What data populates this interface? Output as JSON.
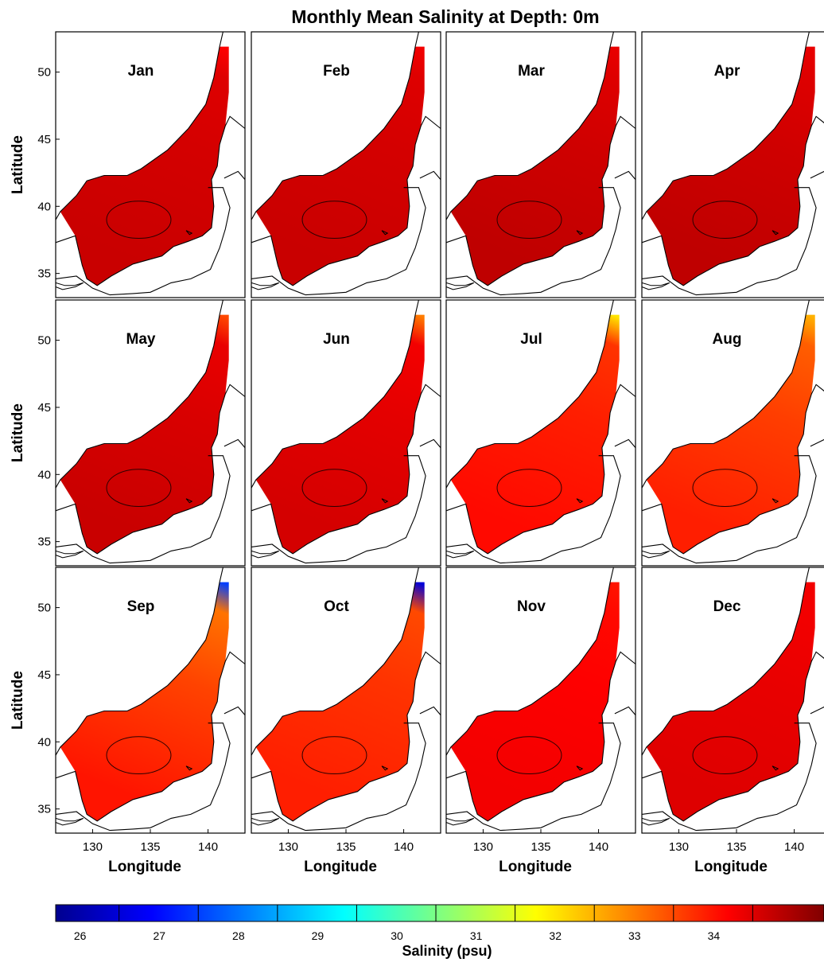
{
  "chart_data": {
    "type": "heatmap",
    "title": "Monthly Mean Salinity at Depth: 0m",
    "xlabel": "Longitude",
    "ylabel": "Latitude",
    "x_ticks": [
      130,
      135,
      140
    ],
    "y_ticks": [
      35,
      40,
      45,
      50
    ],
    "xlim": [
      126.8,
      143.2
    ],
    "ylim": [
      33.2,
      53.0
    ],
    "grid": false,
    "layout": "3 rows x 4 columns",
    "panels": [
      {
        "month": "Jan",
        "surface_salinity_psu": 34.2,
        "coastal_min_psu": 34.0,
        "north_tip_psu": 33.7,
        "contour_psu": 34.2
      },
      {
        "month": "Feb",
        "surface_salinity_psu": 34.2,
        "coastal_min_psu": 34.0,
        "north_tip_psu": 33.8,
        "contour_psu": 34.2
      },
      {
        "month": "Mar",
        "surface_salinity_psu": 34.3,
        "coastal_min_psu": 34.0,
        "north_tip_psu": 33.9,
        "contour_psu": 34.2
      },
      {
        "month": "Apr",
        "surface_salinity_psu": 34.3,
        "coastal_min_psu": 34.0,
        "north_tip_psu": 33.9,
        "contour_psu": 34.2
      },
      {
        "month": "May",
        "surface_salinity_psu": 34.2,
        "coastal_min_psu": 33.9,
        "north_tip_psu": 33.0,
        "contour_psu": 34.2
      },
      {
        "month": "Jun",
        "surface_salinity_psu": 34.1,
        "coastal_min_psu": 33.8,
        "north_tip_psu": 32.5,
        "contour_psu": 34.2
      },
      {
        "month": "Jul",
        "surface_salinity_psu": 33.6,
        "coastal_min_psu": 33.2,
        "north_tip_psu": 31.5,
        "contour_psu": 34.0
      },
      {
        "month": "Aug",
        "surface_salinity_psu": 33.4,
        "coastal_min_psu": 32.8,
        "north_tip_psu": 32.0,
        "contour_psu": 33.5
      },
      {
        "month": "Sep",
        "surface_salinity_psu": 33.5,
        "coastal_min_psu": 32.6,
        "north_tip_psu": 27.0,
        "contour_psu": 33.5
      },
      {
        "month": "Oct",
        "surface_salinity_psu": 33.4,
        "coastal_min_psu": 33.0,
        "north_tip_psu": 26.0,
        "contour_psu": 33.5
      },
      {
        "month": "Nov",
        "surface_salinity_psu": 33.8,
        "coastal_min_psu": 33.6,
        "north_tip_psu": 33.5,
        "contour_psu": 34.0
      },
      {
        "month": "Dec",
        "surface_salinity_psu": 34.0,
        "coastal_min_psu": 33.8,
        "north_tip_psu": 33.8,
        "contour_psu": 34.2
      }
    ],
    "colorbar": {
      "label": "Salinity (psu)",
      "range": [
        25.2,
        34.9
      ],
      "ticks": [
        26,
        27,
        28,
        29,
        30,
        31,
        32,
        33,
        34
      ],
      "colormap": [
        "#00008f",
        "#0000ff",
        "#0080ff",
        "#00ffff",
        "#80ff80",
        "#ffff00",
        "#ff8000",
        "#ff0000",
        "#800000"
      ]
    }
  }
}
